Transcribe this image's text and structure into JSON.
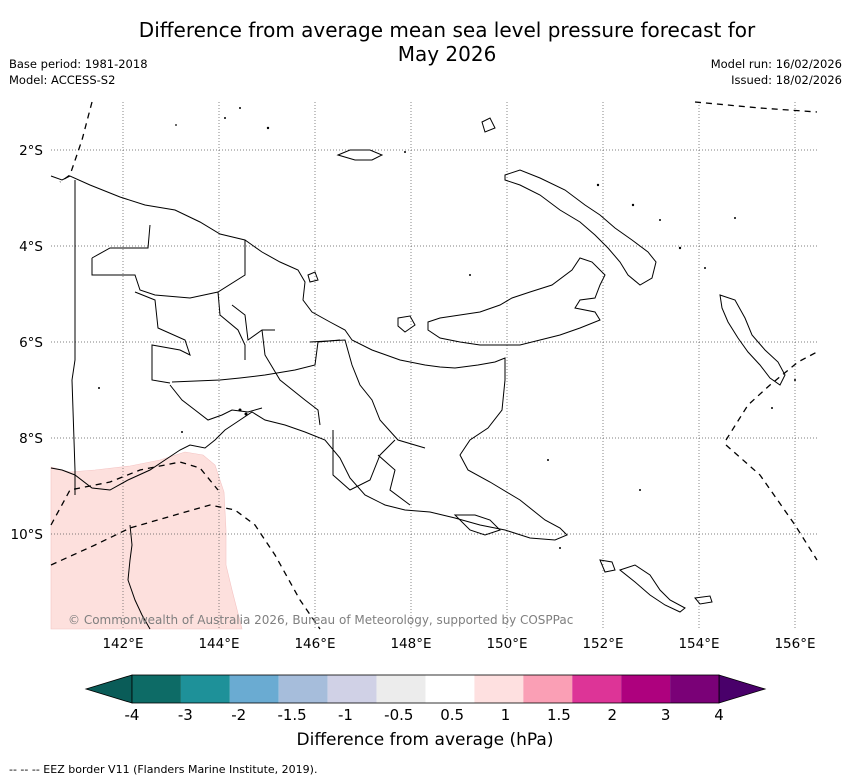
{
  "header": {
    "title_line1": "Difference from average mean sea level pressure forecast for",
    "title_line2": "May 2026",
    "base_period": "Base period: 1981-2018",
    "model": "Model: ACCESS-S2",
    "model_run": "Model run: 16/02/2026",
    "issued": "Issued: 18/02/2026"
  },
  "map": {
    "lat_labels": [
      "2°S",
      "4°S",
      "6°S",
      "8°S",
      "10°S"
    ],
    "lon_labels": [
      "142°E",
      "144°E",
      "146°E",
      "148°E",
      "150°E",
      "152°E",
      "154°E",
      "156°E"
    ],
    "copyright": "© Commonwealth of Australia 2026, Bureau of Meteorology, supported by COSPPac",
    "anomaly_region_value": "0.5 to 1 hPa"
  },
  "colorbar": {
    "caption": "Difference from average (hPa)",
    "tick_labels": [
      "-4",
      "-3",
      "-2",
      "-1.5",
      "-1",
      "-0.5",
      "0.5",
      "1",
      "1.5",
      "2",
      "3",
      "4"
    ],
    "colors": [
      "#0d6b66",
      "#1e9199",
      "#6aabd2",
      "#a6bddb",
      "#d0d1e6",
      "#ececec",
      "#ffffff",
      "#fee0e0",
      "#fa9fb5",
      "#dd3497",
      "#ae017e",
      "#7a0177"
    ],
    "low_extend_color": "#0a5c58",
    "high_extend_color": "#49006a"
  },
  "legend": {
    "eez_label": "--  --  -- EEZ border V11 (Flanders Marine Institute, 2019)."
  }
}
